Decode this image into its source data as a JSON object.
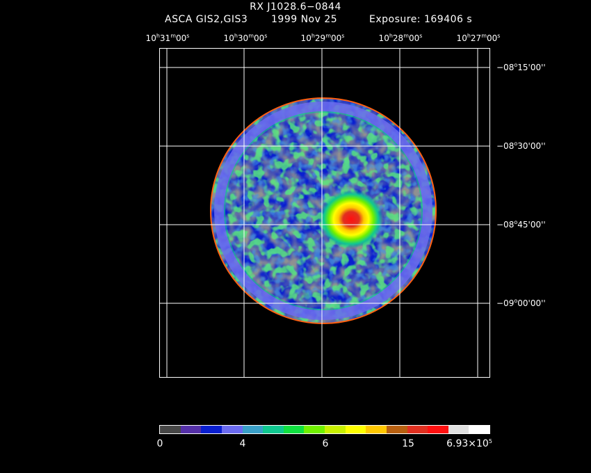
{
  "header": {
    "title": "RX J1028.6−0844",
    "instrument": "ASCA GIS2,GIS3",
    "date": "1999 Nov 25",
    "exposure": "Exposure: 169406 s"
  },
  "ra_ticks": [
    {
      "h": "10",
      "m": "31",
      "s": "00"
    },
    {
      "h": "10",
      "m": "30",
      "s": "00"
    },
    {
      "h": "10",
      "m": "29",
      "s": "00"
    },
    {
      "h": "10",
      "m": "28",
      "s": "00"
    },
    {
      "h": "10",
      "m": "27",
      "s": "00"
    }
  ],
  "dec_ticks": [
    {
      "d": "−08",
      "m": "15",
      "s": "00"
    },
    {
      "d": "−08",
      "m": "30",
      "s": "00"
    },
    {
      "d": "−08",
      "m": "45",
      "s": "00"
    },
    {
      "d": "−09",
      "m": "00",
      "s": "00"
    }
  ],
  "colorbar": {
    "colors": [
      "#474747",
      "#5530a8",
      "#0a1fd0",
      "#6b6bf0",
      "#3aa0c8",
      "#10c890",
      "#10e040",
      "#70f000",
      "#c8f000",
      "#ffff00",
      "#ffc800",
      "#b86010",
      "#e03020",
      "#ff1010",
      "#e0e0e0",
      "#ffffff"
    ],
    "labels": {
      "l0": "0",
      "l1": "4",
      "l2": "6",
      "l3": "15",
      "l4_base": "6.93×10",
      "l4_exp": "5"
    }
  }
}
